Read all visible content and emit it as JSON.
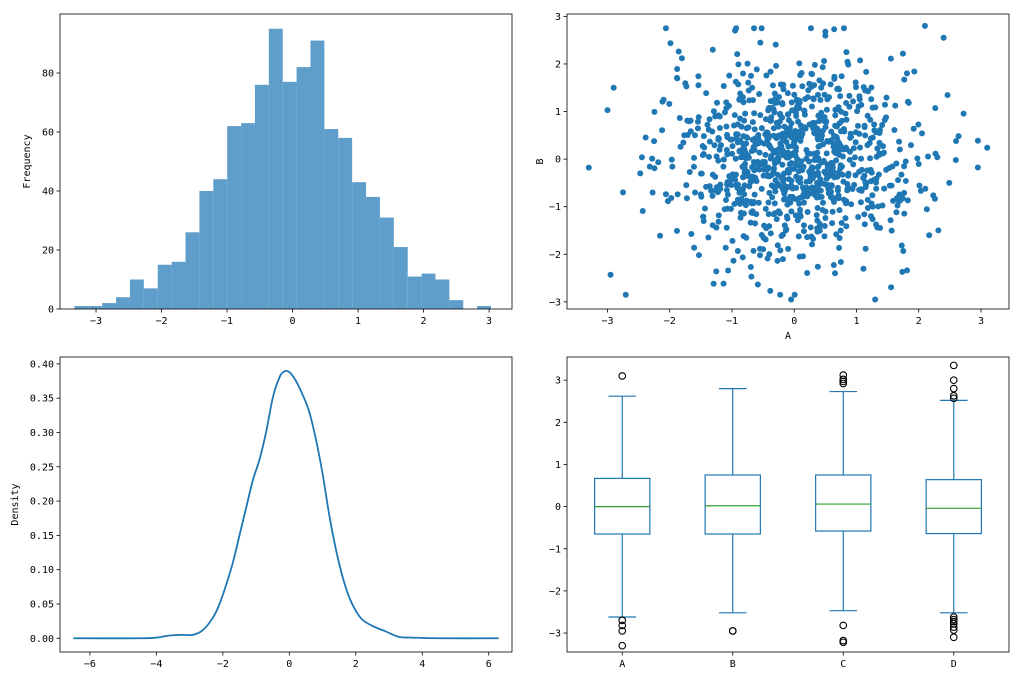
{
  "chart_data": [
    {
      "type": "histogram",
      "xlabel": "",
      "ylabel": "Frequency",
      "xlim": [
        -3.55,
        3.35
      ],
      "ylim": [
        0,
        100
      ],
      "xticks": [
        -3,
        -2,
        -1,
        0,
        1,
        2,
        3
      ],
      "yticks": [
        0,
        20,
        40,
        60,
        80
      ],
      "bin_start": -3.33,
      "bin_width": 0.212,
      "counts": [
        1,
        1,
        2,
        4,
        10,
        7,
        15,
        16,
        26,
        40,
        44,
        62,
        63,
        76,
        95,
        77,
        82,
        91,
        61,
        58,
        43,
        38,
        31,
        21,
        11,
        12,
        10,
        3,
        0,
        1
      ],
      "color": "#5f9ecb"
    },
    {
      "type": "scatter",
      "xlabel": "A",
      "ylabel": "B",
      "xlim": [
        -3.65,
        3.45
      ],
      "ylim": [
        -3.15,
        3.05
      ],
      "xticks": [
        -3,
        -2,
        -1,
        0,
        1,
        2,
        3
      ],
      "yticks": [
        -3,
        -2,
        -1,
        0,
        1,
        2,
        3
      ],
      "n_points": 1000,
      "points_sample": [
        [
          -3.3,
          -0.18
        ],
        [
          -3.0,
          1.03
        ],
        [
          -2.9,
          1.5
        ],
        [
          3.1,
          0.24
        ],
        [
          2.1,
          2.8
        ],
        [
          2.4,
          2.55
        ],
        [
          1.3,
          -2.95
        ],
        [
          -0.05,
          -2.95
        ],
        [
          -0.95,
          2.7
        ],
        [
          0.5,
          2.68
        ],
        [
          -2.75,
          -0.7
        ],
        [
          2.6,
          0.38
        ]
      ],
      "color": "#1f77b4"
    },
    {
      "type": "line",
      "xlabel": "",
      "ylabel": "Density",
      "xlim": [
        -6.9,
        6.7
      ],
      "ylim": [
        -0.02,
        0.41
      ],
      "xticks": [
        -6,
        -4,
        -2,
        0,
        2,
        4,
        6
      ],
      "yticks": [
        0.0,
        0.05,
        0.1,
        0.15,
        0.2,
        0.25,
        0.3,
        0.35,
        0.4
      ],
      "x": [
        -6.5,
        -4.5,
        -4.0,
        -3.6,
        -3.2,
        -2.9,
        -2.6,
        -2.3,
        -2.1,
        -1.9,
        -1.7,
        -1.5,
        -1.3,
        -1.1,
        -0.9,
        -0.7,
        -0.5,
        -0.3,
        -0.15,
        0.0,
        0.2,
        0.4,
        0.6,
        0.8,
        1.0,
        1.2,
        1.4,
        1.6,
        1.8,
        2.0,
        2.2,
        2.5,
        2.9,
        3.3,
        3.7,
        4.5,
        6.3
      ],
      "y": [
        0.0,
        0.0,
        0.001,
        0.004,
        0.005,
        0.005,
        0.012,
        0.03,
        0.05,
        0.078,
        0.11,
        0.15,
        0.19,
        0.23,
        0.26,
        0.3,
        0.35,
        0.38,
        0.389,
        0.388,
        0.375,
        0.355,
        0.33,
        0.29,
        0.24,
        0.18,
        0.13,
        0.09,
        0.06,
        0.04,
        0.027,
        0.018,
        0.01,
        0.002,
        0.001,
        0.0,
        0.0
      ],
      "color": "#1f77b4"
    },
    {
      "type": "box",
      "categories": [
        "A",
        "B",
        "C",
        "D"
      ],
      "ylim": [
        -3.45,
        3.55
      ],
      "yticks": [
        -3,
        -2,
        -1,
        0,
        1,
        2,
        3
      ],
      "boxes": [
        {
          "name": "A",
          "q1": -0.65,
          "median": 0.0,
          "q3": 0.67,
          "whisker_low": -2.62,
          "whisker_high": 2.62,
          "fliers": [
            3.1,
            -2.7,
            -2.82,
            -2.95,
            -3.3
          ]
        },
        {
          "name": "B",
          "q1": -0.65,
          "median": 0.02,
          "q3": 0.75,
          "whisker_low": -2.52,
          "whisker_high": 2.8,
          "fliers": [
            -2.95,
            -2.95
          ]
        },
        {
          "name": "C",
          "q1": -0.58,
          "median": 0.06,
          "q3": 0.75,
          "whisker_low": -2.47,
          "whisker_high": 2.73,
          "fliers": [
            3.12,
            3.02,
            2.97,
            2.92,
            -2.82,
            -3.18,
            -3.22
          ]
        },
        {
          "name": "D",
          "q1": -0.64,
          "median": -0.04,
          "q3": 0.64,
          "whisker_low": -2.52,
          "whisker_high": 2.52,
          "fliers": [
            3.35,
            3.0,
            2.8,
            2.63,
            2.57,
            -2.62,
            -2.68,
            -2.73,
            -2.78,
            -2.86,
            -2.93,
            -3.1
          ]
        }
      ],
      "box_color": "#1f77b4",
      "median_color": "#2ca02c"
    }
  ]
}
